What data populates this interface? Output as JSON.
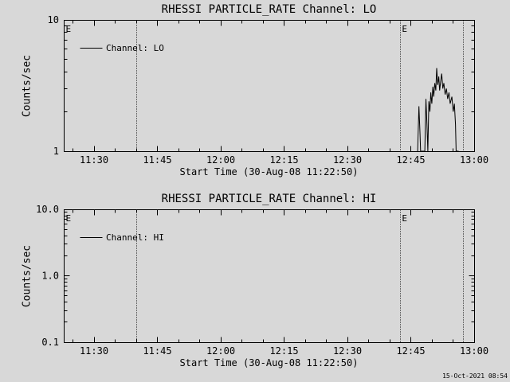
{
  "page": {
    "background": "#d8d8d8",
    "foreground": "#000000",
    "timestamp": "15-Oct-2021 08:54"
  },
  "chart_data": [
    {
      "type": "line",
      "title": "RHESSI PARTICLE_RATE Channel: LO",
      "xlabel": "Start Time (30-Aug-08 11:22:50)",
      "ylabel": "Counts/sec",
      "legend": {
        "label": "Channel: LO",
        "position": "upper-left"
      },
      "x_axis": {
        "start_time": "30-Aug-08 11:22:50",
        "range_minutes": [
          0,
          97.17
        ],
        "major_ticks": [
          {
            "label": "11:30",
            "t": 7.17
          },
          {
            "label": "11:45",
            "t": 22.17
          },
          {
            "label": "12:00",
            "t": 37.17
          },
          {
            "label": "12:15",
            "t": 52.17
          },
          {
            "label": "12:30",
            "t": 67.17
          },
          {
            "label": "12:45",
            "t": 82.17
          },
          {
            "label": "13:00",
            "t": 97.17
          }
        ],
        "minor_tick_step_minutes": 5,
        "first_minor_t": 2.17
      },
      "y_axis": {
        "scale": "log",
        "range": [
          1,
          10
        ],
        "major_ticks": [
          {
            "label": "1",
            "value": 1
          },
          {
            "label": "10",
            "value": 10
          }
        ]
      },
      "event_markers": {
        "line_times_t": [
          17.17,
          79.67,
          94.67
        ],
        "flags": [
          {
            "text": "E",
            "t": 1.1
          },
          {
            "text": "E",
            "t": 80.7
          }
        ]
      },
      "grid": false,
      "series": [
        {
          "name": "Channel: LO",
          "points_t_value": [
            [
              83.8,
              1.0
            ],
            [
              84.1,
              2.2
            ],
            [
              84.35,
              1.35
            ],
            [
              84.5,
              1.0
            ],
            [
              85.5,
              1.0
            ],
            [
              85.75,
              2.5
            ],
            [
              86.0,
              1.6
            ],
            [
              86.2,
              1.0
            ],
            [
              86.45,
              2.4
            ],
            [
              86.7,
              2.0
            ],
            [
              86.9,
              2.8
            ],
            [
              87.15,
              2.3
            ],
            [
              87.4,
              3.1
            ],
            [
              87.6,
              2.6
            ],
            [
              87.85,
              3.3
            ],
            [
              88.1,
              2.9
            ],
            [
              88.3,
              4.3
            ],
            [
              88.55,
              3.2
            ],
            [
              88.8,
              3.7
            ],
            [
              89.0,
              2.9
            ],
            [
              89.25,
              3.4
            ],
            [
              89.5,
              3.9
            ],
            [
              89.75,
              3.0
            ],
            [
              90.0,
              3.3
            ],
            [
              90.3,
              2.7
            ],
            [
              90.6,
              3.0
            ],
            [
              90.9,
              2.5
            ],
            [
              91.2,
              2.8
            ],
            [
              91.5,
              2.3
            ],
            [
              91.9,
              2.6
            ],
            [
              92.2,
              2.0
            ],
            [
              92.5,
              2.3
            ],
            [
              92.75,
              1.6
            ],
            [
              92.9,
              1.0
            ],
            [
              93.5,
              1.0
            ]
          ]
        }
      ]
    },
    {
      "type": "line",
      "title": "RHESSI PARTICLE_RATE Channel: HI",
      "xlabel": "Start Time (30-Aug-08 11:22:50)",
      "ylabel": "Counts/sec",
      "legend": {
        "label": "Channel: HI",
        "position": "upper-left"
      },
      "x_axis": {
        "start_time": "30-Aug-08 11:22:50",
        "range_minutes": [
          0,
          97.17
        ],
        "major_ticks": [
          {
            "label": "11:30",
            "t": 7.17
          },
          {
            "label": "11:45",
            "t": 22.17
          },
          {
            "label": "12:00",
            "t": 37.17
          },
          {
            "label": "12:15",
            "t": 52.17
          },
          {
            "label": "12:30",
            "t": 67.17
          },
          {
            "label": "12:45",
            "t": 82.17
          },
          {
            "label": "13:00",
            "t": 97.17
          }
        ],
        "minor_tick_step_minutes": 5,
        "first_minor_t": 2.17
      },
      "y_axis": {
        "scale": "log",
        "range": [
          0.1,
          10
        ],
        "major_ticks": [
          {
            "label": "0.1",
            "value": 0.1
          },
          {
            "label": "1.0",
            "value": 1
          },
          {
            "label": "10.0",
            "value": 10
          }
        ]
      },
      "event_markers": {
        "line_times_t": [
          17.17,
          79.67,
          94.67
        ],
        "flags": [
          {
            "text": "E",
            "t": 1.1
          },
          {
            "text": "E",
            "t": 80.7
          }
        ]
      },
      "grid": false,
      "series": [
        {
          "name": "Channel: HI",
          "points_t_value": []
        }
      ]
    }
  ]
}
